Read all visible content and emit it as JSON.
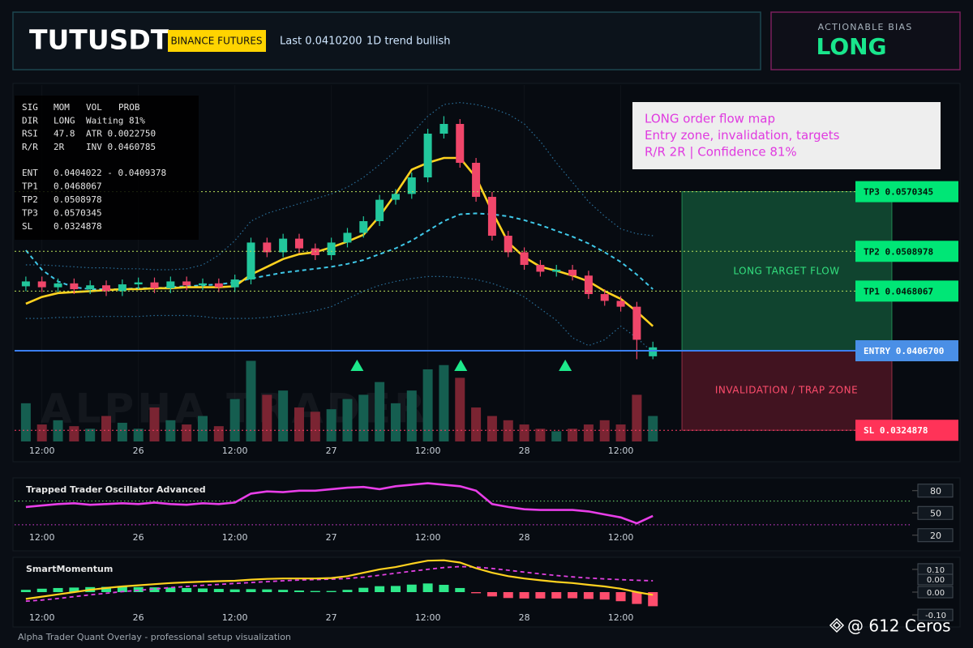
{
  "header": {
    "symbol": "TUTUSDT",
    "exchange": "BINANCE FUTURES",
    "last": "Last 0.0410200",
    "trend": "1D trend bullish"
  },
  "bias": {
    "label": "ACTIONABLE BIAS",
    "value": "LONG"
  },
  "stats": {
    "signals": [
      [
        "SIG",
        "MOM",
        "VOL",
        "PROB"
      ],
      [
        "DIR",
        "LONG",
        "Waiting 81%"
      ],
      [
        "RSI",
        "47.8",
        "ATR 0.0022750"
      ],
      [
        "R/R",
        "2R",
        "INV 0.0460785"
      ]
    ],
    "levels": [
      [
        "ENT",
        "0.0404022 - 0.0409378"
      ],
      [
        "TP1",
        "0.0468067"
      ],
      [
        "TP2",
        "0.0508978"
      ],
      [
        "TP3",
        "0.0570345"
      ],
      [
        "SL",
        "0.0324878"
      ]
    ]
  },
  "note": {
    "lines": [
      "LONG order flow map",
      "Entry zone, invalidation, targets",
      "R/R 2R | Confidence 81%"
    ]
  },
  "watermark": "ALPHA TRADER",
  "credit": "@ 612 Ceros",
  "footer": "Alpha Trader Quant Overlay - professional setup visualization",
  "chart_data": [
    {
      "type": "candlestick",
      "x": [
        -2,
        0,
        2,
        4,
        6,
        8,
        10,
        12,
        14,
        16,
        18,
        20,
        22,
        24,
        26,
        28,
        30,
        32,
        34,
        36,
        38,
        40,
        42,
        44,
        46,
        48,
        50,
        52,
        54,
        56,
        58,
        60,
        62,
        64,
        66,
        68,
        70,
        72,
        74,
        76
      ],
      "open": [
        0.0473,
        0.0478,
        0.0472,
        0.0476,
        0.047,
        0.0474,
        0.0468,
        0.0475,
        0.0477,
        0.0471,
        0.0478,
        0.0474,
        0.0476,
        0.0472,
        0.048,
        0.0518,
        0.0508,
        0.0522,
        0.0512,
        0.0505,
        0.0518,
        0.0528,
        0.054,
        0.0562,
        0.0568,
        0.0585,
        0.063,
        0.064,
        0.06,
        0.0565,
        0.0525,
        0.0508,
        0.0495,
        0.0488,
        0.049,
        0.0484,
        0.0465,
        0.0458,
        0.0452,
        0.0401
      ],
      "high": [
        0.0483,
        0.0483,
        0.0481,
        0.0481,
        0.0479,
        0.0479,
        0.048,
        0.0482,
        0.0482,
        0.0483,
        0.0483,
        0.0481,
        0.0481,
        0.0485,
        0.0523,
        0.0523,
        0.0527,
        0.0527,
        0.0517,
        0.0523,
        0.0533,
        0.0545,
        0.0567,
        0.0573,
        0.059,
        0.0635,
        0.0648,
        0.0645,
        0.0605,
        0.057,
        0.053,
        0.0513,
        0.05,
        0.0495,
        0.0495,
        0.0489,
        0.047,
        0.0463,
        0.0457,
        0.0416
      ],
      "low": [
        0.0468,
        0.0467,
        0.0467,
        0.0465,
        0.0465,
        0.0463,
        0.0463,
        0.047,
        0.0466,
        0.0466,
        0.0469,
        0.0469,
        0.0467,
        0.0467,
        0.0475,
        0.0503,
        0.0503,
        0.0507,
        0.05,
        0.05,
        0.0513,
        0.0523,
        0.0535,
        0.0557,
        0.0563,
        0.058,
        0.0625,
        0.0595,
        0.056,
        0.052,
        0.0503,
        0.049,
        0.0483,
        0.0483,
        0.0479,
        0.046,
        0.0453,
        0.0447,
        0.0398,
        0.0398
      ],
      "close": [
        0.0478,
        0.0472,
        0.0476,
        0.047,
        0.0474,
        0.0468,
        0.0475,
        0.0477,
        0.0471,
        0.0478,
        0.0474,
        0.0476,
        0.0472,
        0.048,
        0.0518,
        0.0508,
        0.0522,
        0.0512,
        0.0505,
        0.0518,
        0.0528,
        0.054,
        0.0562,
        0.0568,
        0.0585,
        0.063,
        0.064,
        0.06,
        0.0565,
        0.0525,
        0.0508,
        0.0495,
        0.0488,
        0.049,
        0.0484,
        0.0465,
        0.0458,
        0.0452,
        0.0418,
        0.04102
      ],
      "up_color": "#22c79c",
      "down_color": "#f0466a",
      "xlim": [
        -3.4,
        78.5
      ],
      "xticks": [
        {
          "value": 0,
          "label": "12:00"
        },
        {
          "value": 12,
          "label": "26"
        },
        {
          "value": 24,
          "label": "12:00"
        },
        {
          "value": 36,
          "label": "27"
        },
        {
          "value": 48,
          "label": "12:00"
        },
        {
          "value": 60,
          "label": "28"
        },
        {
          "value": 72,
          "label": "12:00"
        }
      ],
      "ylim": [
        0.03134,
        0.068
      ],
      "overlays": [
        {
          "color": "#2a6f9a",
          "style": "dotted",
          "values": [
            0.0495,
            0.0495,
            0.0494,
            0.0493,
            0.0492,
            0.0492,
            0.0491,
            0.0491,
            0.049,
            0.049,
            0.0491,
            0.0495,
            0.0505,
            0.052,
            0.054,
            0.0548,
            0.0553,
            0.0558,
            0.0563,
            0.0568,
            0.0575,
            0.0585,
            0.0598,
            0.0612,
            0.063,
            0.0648,
            0.066,
            0.0662,
            0.066,
            0.0656,
            0.065,
            0.064,
            0.0622,
            0.06,
            0.058,
            0.056,
            0.0545,
            0.0532,
            0.0527,
            0.0525
          ]
        },
        {
          "color": "#2a6f9a",
          "style": "dotted",
          "values": [
            0.044,
            0.044,
            0.0441,
            0.0441,
            0.0442,
            0.0442,
            0.0442,
            0.0442,
            0.0443,
            0.0443,
            0.0443,
            0.0442,
            0.044,
            0.044,
            0.044,
            0.0441,
            0.0443,
            0.0445,
            0.0448,
            0.0452,
            0.046,
            0.0468,
            0.0474,
            0.0478,
            0.0481,
            0.0483,
            0.0483,
            0.0482,
            0.048,
            0.0476,
            0.047,
            0.0462,
            0.045,
            0.0438,
            0.042,
            0.0412,
            0.0418,
            0.0432,
            0.042,
            0.0405
          ]
        },
        {
          "color": "#3fc8e8",
          "style": "dashed",
          "values": [
            0.051,
            0.049,
            0.0478,
            0.0472,
            0.047,
            0.047,
            0.047,
            0.0471,
            0.0471,
            0.0472,
            0.0473,
            0.0474,
            0.0475,
            0.0477,
            0.0481,
            0.0484,
            0.0487,
            0.0489,
            0.0491,
            0.0493,
            0.0496,
            0.05,
            0.0506,
            0.0512,
            0.052,
            0.053,
            0.054,
            0.0547,
            0.0548,
            0.0547,
            0.0545,
            0.0541,
            0.0536,
            0.053,
            0.0524,
            0.0517,
            0.0508,
            0.0498,
            0.0485,
            0.047
          ]
        },
        {
          "color": "#ffd21f",
          "style": "solid",
          "values": [
            0.0455,
            0.0462,
            0.0466,
            0.0467,
            0.0468,
            0.0469,
            0.047,
            0.047,
            0.0471,
            0.0471,
            0.0472,
            0.0472,
            0.0472,
            0.0473,
            0.0485,
            0.0493,
            0.0501,
            0.0506,
            0.0508,
            0.0513,
            0.0519,
            0.0526,
            0.0545,
            0.0568,
            0.0593,
            0.06,
            0.0605,
            0.0605,
            0.0585,
            0.055,
            0.0518,
            0.0503,
            0.0493,
            0.0489,
            0.0484,
            0.0478,
            0.0468,
            0.046,
            0.0447,
            0.0432
          ]
        }
      ],
      "volume": {
        "values": [
          45,
          20,
          25,
          18,
          15,
          30,
          22,
          15,
          40,
          25,
          20,
          30,
          18,
          50,
          95,
          55,
          60,
          40,
          35,
          38,
          50,
          55,
          70,
          45,
          60,
          85,
          90,
          75,
          40,
          30,
          25,
          20,
          15,
          12,
          15,
          20,
          25,
          20,
          55,
          30
        ],
        "ylim": [
          0,
          105
        ],
        "up_color": "#155e50",
        "down_color": "#7a2432"
      },
      "levels": [
        {
          "label": "TP3 0.0570345",
          "value": 0.0570345,
          "color": "#b8e05a",
          "tag_color": "#00e676",
          "text_color": "#04140a"
        },
        {
          "label": "TP2 0.0508978",
          "value": 0.0508978,
          "color": "#b8e05a",
          "tag_color": "#00e676",
          "text_color": "#04140a"
        },
        {
          "label": "TP1 0.0468067",
          "value": 0.0468067,
          "color": "#b8e05a",
          "tag_color": "#00e676",
          "text_color": "#04140a"
        },
        {
          "label": "ENTRY 0.0406700",
          "value": 0.04067,
          "color": "#3b7ff0",
          "tag_color": "#4a8fe6",
          "text_color": "#ffffff"
        },
        {
          "label": "SL 0.0324878",
          "value": 0.0324878,
          "color": "#ff3d64",
          "tag_color": "#ff3358",
          "text_color": "#ffffff"
        }
      ],
      "zones": [
        {
          "label": "LONG TARGET FLOW",
          "color": "#1c8a55",
          "label_color": "#33e07f"
        },
        {
          "label": "INVALIDATION / TRAP ZONE",
          "color": "#8a1c34",
          "label_color": "#ff4d6d"
        }
      ],
      "signals": {
        "x": [
          39.2,
          52.1,
          65.1
        ],
        "color": "#1de98b"
      }
    },
    {
      "type": "line",
      "title": "Trapped Trader Oscillator Advanced",
      "series": [
        {
          "color": "#e83ee8",
          "values": [
            58,
            60,
            62,
            63,
            61,
            62,
            63,
            62,
            64,
            62,
            61,
            63,
            62,
            64,
            76,
            79,
            78,
            80,
            80,
            82,
            84,
            85,
            82,
            86,
            88,
            90,
            88,
            86,
            80,
            62,
            58,
            55,
            54,
            54,
            54,
            52,
            48,
            44,
            36,
            46
          ]
        }
      ],
      "ylim": [
        -1,
        95
      ],
      "yticks": [
        20,
        50,
        80
      ],
      "levels": [
        {
          "value": 66,
          "color": "#6fdc6f"
        },
        {
          "value": 34,
          "color": "#e040e0"
        }
      ]
    },
    {
      "type": "momentum",
      "title": "SmartMomentum",
      "histogram": {
        "values": [
          0.01,
          0.015,
          0.018,
          0.02,
          0.022,
          0.023,
          0.023,
          0.022,
          0.021,
          0.02,
          0.018,
          0.016,
          0.014,
          0.012,
          0.013,
          0.012,
          0.01,
          0.007,
          0.005,
          0.005,
          0.01,
          0.019,
          0.026,
          0.027,
          0.033,
          0.038,
          0.032,
          0.018,
          -0.005,
          -0.019,
          -0.026,
          -0.028,
          -0.028,
          -0.028,
          -0.027,
          -0.03,
          -0.033,
          -0.04,
          -0.052,
          -0.062
        ],
        "up_color": "#2ee88a",
        "down_color": "#ff4d6d"
      },
      "series": [
        {
          "color": "#e040e0",
          "style": "dashed",
          "values": [
            -0.04,
            -0.035,
            -0.028,
            -0.02,
            -0.012,
            -0.005,
            0.002,
            0.008,
            0.014,
            0.02,
            0.025,
            0.03,
            0.034,
            0.038,
            0.042,
            0.046,
            0.05,
            0.053,
            0.055,
            0.057,
            0.06,
            0.066,
            0.074,
            0.083,
            0.092,
            0.1,
            0.108,
            0.112,
            0.11,
            0.104,
            0.096,
            0.088,
            0.08,
            0.073,
            0.067,
            0.062,
            0.058,
            0.055,
            0.052,
            0.05
          ]
        },
        {
          "color": "#ffd21f",
          "style": "solid",
          "values": [
            -0.03,
            -0.02,
            -0.01,
            0,
            0.01,
            0.018,
            0.025,
            0.03,
            0.035,
            0.04,
            0.043,
            0.046,
            0.048,
            0.05,
            0.055,
            0.058,
            0.06,
            0.06,
            0.06,
            0.062,
            0.07,
            0.085,
            0.1,
            0.11,
            0.125,
            0.138,
            0.14,
            0.13,
            0.105,
            0.085,
            0.07,
            0.06,
            0.052,
            0.045,
            0.04,
            0.032,
            0.025,
            0.015,
            0,
            -0.012
          ]
        }
      ],
      "ylim": [
        -0.146,
        0.146
      ],
      "yticks": [
        {
          "value": 0.1,
          "label": "0.10"
        },
        {
          "value": 0,
          "label": "0.00"
        },
        {
          "value": -0.1,
          "label": "-0.10"
        }
      ],
      "badge": "0.00"
    }
  ]
}
